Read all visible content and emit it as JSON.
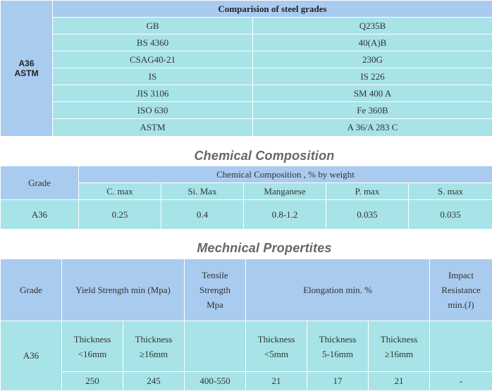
{
  "comparison": {
    "grade_line1": "A36",
    "grade_line2": "ASTM",
    "title": "Comparision of steel grades",
    "rows": [
      {
        "standard": "GB",
        "grade": "Q235B"
      },
      {
        "standard": "BS 4360",
        "grade": "40(A)B"
      },
      {
        "standard": "CSAG40-21",
        "grade": "230G"
      },
      {
        "standard": "IS",
        "grade": "IS 226"
      },
      {
        "standard": "JIS 3106",
        "grade": "SM 400 A"
      },
      {
        "standard": "ISO 630",
        "grade": "Fe 360B"
      },
      {
        "standard": "ASTM",
        "grade": "A 36/A 283 C"
      }
    ]
  },
  "chemical": {
    "section_title": "Chemical Composition",
    "grade_header": "Grade",
    "group_header": "Chemical Composition , % by weight",
    "columns": [
      "C. max",
      "Si. Max",
      "Manganese",
      "P. max",
      "S. max"
    ],
    "grade": "A36",
    "values": [
      "0.25",
      "0.4",
      "0.8-1.2",
      "0.035",
      "0.035"
    ]
  },
  "mechanical": {
    "section_title": "Mechnical Propertites",
    "grade_header": "Grade",
    "yield_header": "Yield Strength min (Mpa)",
    "tensile_header": [
      "Tensile",
      "Strength",
      "Mpa"
    ],
    "elongation_header": "Elongation min. %",
    "impact_header": [
      "Impact",
      "Resistance",
      "min.(J)"
    ],
    "grade": "A36",
    "thickness_cols": [
      [
        "Thickness",
        "<16mm"
      ],
      [
        "Thickness",
        "≥16mm"
      ],
      [
        "Thickness",
        "<5mm"
      ],
      [
        "Thickness",
        "5-16mm"
      ],
      [
        "Thickness",
        "≥16mm"
      ]
    ],
    "values": [
      "250",
      "245",
      "400-550",
      "21",
      "17",
      "21",
      "-"
    ]
  }
}
